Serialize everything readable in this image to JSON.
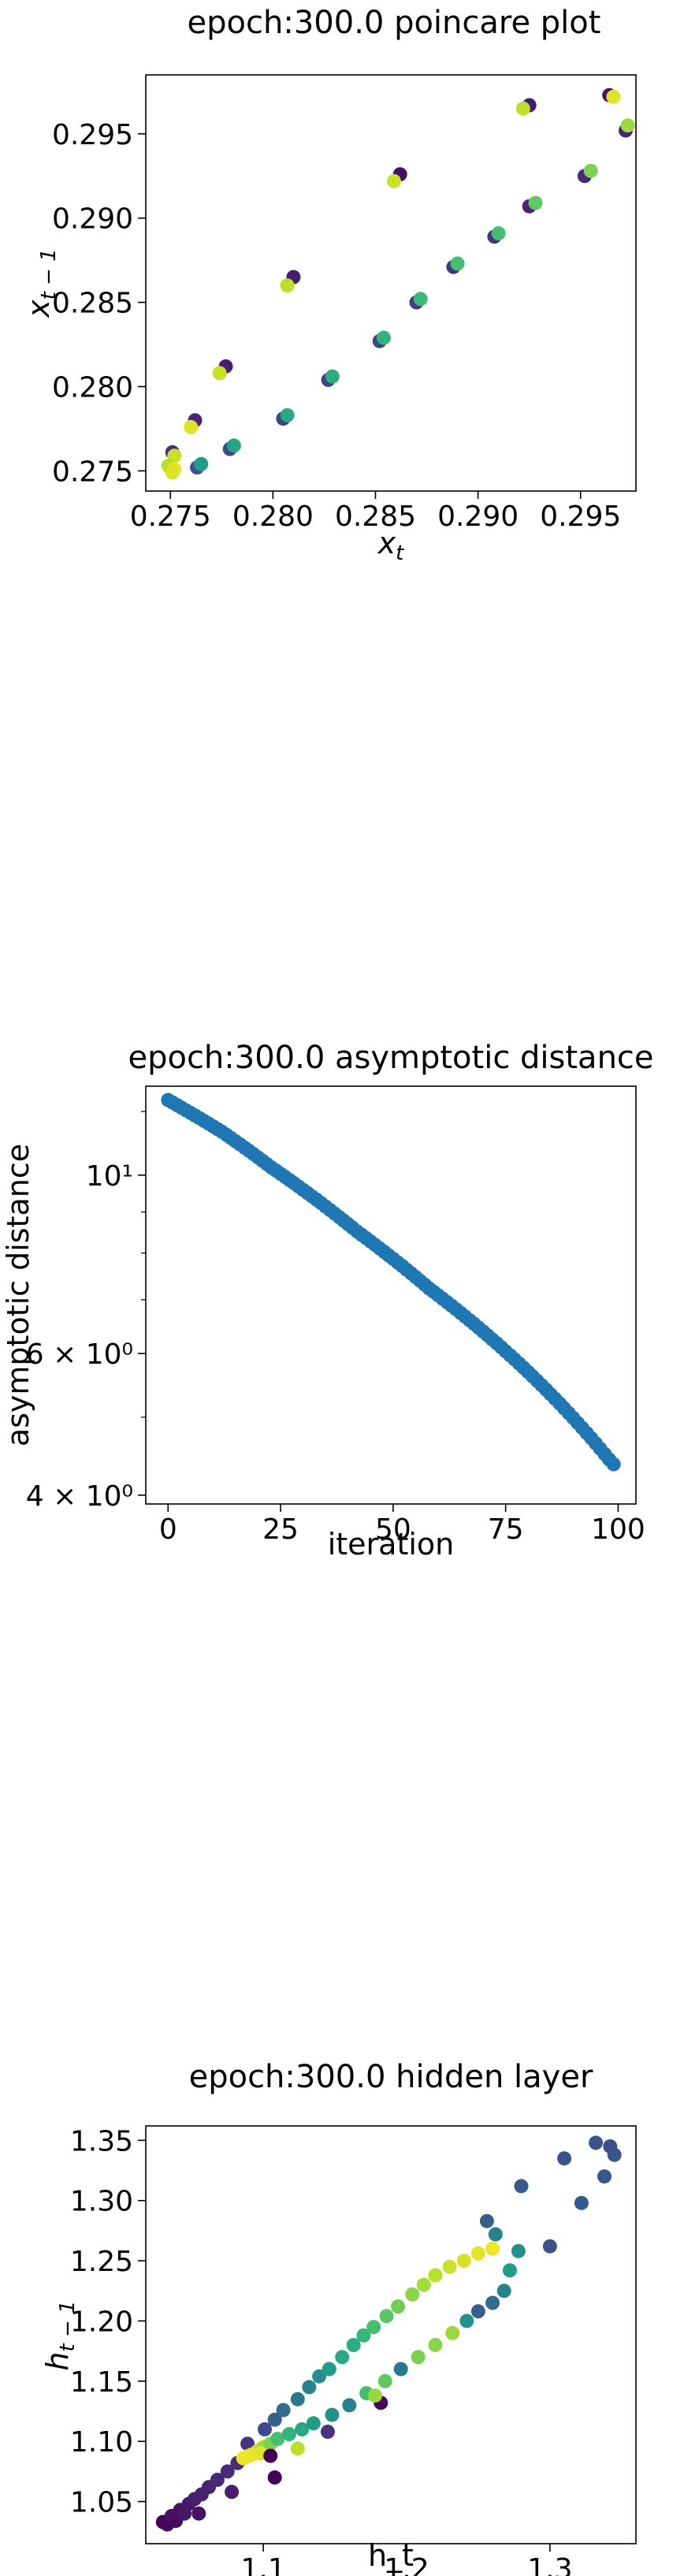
{
  "chart_data": [
    {
      "type": "scatter",
      "title": "epoch:300.0 poincare plot",
      "xlabel": "x_t",
      "ylabel": "x_{t-1}",
      "xlim": [
        0.2738,
        0.2977
      ],
      "ylim": [
        0.2738,
        0.2985
      ],
      "xticks": [
        0.275,
        0.28,
        0.285,
        0.29,
        0.295
      ],
      "xtick_labels": [
        "0.275",
        "0.280",
        "0.285",
        "0.290",
        "0.295"
      ],
      "yticks": [
        0.275,
        0.28,
        0.285,
        0.29,
        0.295
      ],
      "ytick_labels": [
        "0.275",
        "0.280",
        "0.285",
        "0.290",
        "0.295"
      ],
      "grid": false,
      "colormap": "viridis",
      "series": [
        {
          "points": [
            [
              0.2964,
              0.2973,
              0.05
            ],
            [
              0.2966,
              0.2972,
              0.95
            ],
            [
              0.2925,
              0.2967,
              0.08
            ],
            [
              0.2922,
              0.2965,
              0.9
            ],
            [
              0.2972,
              0.2952,
              0.1
            ],
            [
              0.2973,
              0.2955,
              0.85
            ],
            [
              0.2862,
              0.2926,
              0.05
            ],
            [
              0.2859,
              0.2922,
              0.92
            ],
            [
              0.2952,
              0.2925,
              0.12
            ],
            [
              0.2955,
              0.2928,
              0.8
            ],
            [
              0.2925,
              0.2907,
              0.1
            ],
            [
              0.2928,
              0.2909,
              0.75
            ],
            [
              0.2908,
              0.2889,
              0.15
            ],
            [
              0.291,
              0.2891,
              0.7
            ],
            [
              0.281,
              0.2865,
              0.08
            ],
            [
              0.2807,
              0.286,
              0.9
            ],
            [
              0.2888,
              0.2871,
              0.15
            ],
            [
              0.289,
              0.2873,
              0.7
            ],
            [
              0.287,
              0.285,
              0.18
            ],
            [
              0.2872,
              0.2852,
              0.68
            ],
            [
              0.2852,
              0.2827,
              0.2
            ],
            [
              0.2854,
              0.2829,
              0.65
            ],
            [
              0.2777,
              0.2812,
              0.08
            ],
            [
              0.2774,
              0.2808,
              0.92
            ],
            [
              0.2827,
              0.2804,
              0.2
            ],
            [
              0.2829,
              0.2806,
              0.62
            ],
            [
              0.2805,
              0.2781,
              0.2
            ],
            [
              0.2807,
              0.2783,
              0.6
            ],
            [
              0.2762,
              0.278,
              0.1
            ],
            [
              0.276,
              0.2776,
              0.95
            ],
            [
              0.2779,
              0.2763,
              0.22
            ],
            [
              0.2781,
              0.2765,
              0.58
            ],
            [
              0.2751,
              0.2761,
              0.12
            ],
            [
              0.2752,
              0.2759,
              0.92
            ],
            [
              0.2763,
              0.2752,
              0.25
            ],
            [
              0.2765,
              0.2754,
              0.55
            ],
            [
              0.2749,
              0.2753,
              0.9
            ],
            [
              0.2752,
              0.2751,
              0.97
            ],
            [
              0.2751,
              0.2749,
              0.95
            ]
          ]
        }
      ]
    },
    {
      "type": "scatter",
      "title": "epoch:300.0 asymptotic distance",
      "xlabel": "iteration",
      "ylabel": "asymptotic distance",
      "xlim": [
        -4.95,
        103.95
      ],
      "ylim": [
        3.9,
        12.9
      ],
      "yscale": "log",
      "xticks": [
        0,
        25,
        50,
        75,
        100
      ],
      "xtick_labels": [
        "0",
        "25",
        "50",
        "75",
        "100"
      ],
      "yticks": [
        4,
        6,
        10
      ],
      "ytick_labels": [
        "4 × 10⁰",
        "6 × 10⁰",
        "10¹"
      ],
      "grid": false,
      "color": "#1f77b4",
      "series": [
        {
          "x": [
            0,
            1,
            2,
            3,
            4,
            5,
            6,
            7,
            8,
            9,
            10,
            11,
            12,
            13,
            14,
            15,
            16,
            17,
            18,
            19,
            20,
            21,
            22,
            23,
            24,
            25,
            26,
            27,
            28,
            29,
            30,
            31,
            32,
            33,
            34,
            35,
            36,
            37,
            38,
            39,
            40,
            41,
            42,
            43,
            44,
            45,
            46,
            47,
            48,
            49,
            50,
            51,
            52,
            53,
            54,
            55,
            56,
            57,
            58,
            59,
            60,
            61,
            62,
            63,
            64,
            65,
            66,
            67,
            68,
            69,
            70,
            71,
            72,
            73,
            74,
            75,
            76,
            77,
            78,
            79,
            80,
            81,
            82,
            83,
            84,
            85,
            86,
            87,
            88,
            89,
            90,
            91,
            92,
            93,
            94,
            95,
            96,
            97,
            98,
            99
          ],
          "y": [
            12.4,
            12.31,
            12.22,
            12.13,
            12.04,
            11.95,
            11.86,
            11.77,
            11.68,
            11.59,
            11.5,
            11.41,
            11.32,
            11.22,
            11.12,
            11.02,
            10.92,
            10.82,
            10.72,
            10.62,
            10.52,
            10.42,
            10.32,
            10.22,
            10.13,
            10.04,
            9.95,
            9.86,
            9.77,
            9.68,
            9.59,
            9.5,
            9.41,
            9.32,
            9.23,
            9.14,
            9.05,
            8.96,
            8.87,
            8.78,
            8.69,
            8.6,
            8.51,
            8.43,
            8.35,
            8.27,
            8.19,
            8.11,
            8.03,
            7.95,
            7.87,
            7.79,
            7.71,
            7.63,
            7.55,
            7.47,
            7.39,
            7.31,
            7.23,
            7.16,
            7.09,
            7.02,
            6.95,
            6.88,
            6.81,
            6.74,
            6.67,
            6.6,
            6.53,
            6.46,
            6.39,
            6.32,
            6.25,
            6.18,
            6.11,
            6.04,
            5.97,
            5.9,
            5.83,
            5.76,
            5.69,
            5.62,
            5.55,
            5.48,
            5.41,
            5.34,
            5.27,
            5.2,
            5.13,
            5.06,
            4.99,
            4.92,
            4.85,
            4.78,
            4.71,
            4.64,
            4.57,
            4.5,
            4.43,
            4.37
          ]
        }
      ]
    },
    {
      "type": "scatter",
      "title": "epoch:300.0 hidden layer",
      "xlabel": "h_t",
      "ylabel": "h_{t-1}",
      "xlim": [
        1.018,
        1.36
      ],
      "ylim": [
        1.015,
        1.362
      ],
      "xticks": [
        1.1,
        1.2,
        1.3
      ],
      "xtick_labels": [
        "1.1",
        "1.2",
        "1.3"
      ],
      "yticks": [
        1.05,
        1.1,
        1.15,
        1.2,
        1.25,
        1.3,
        1.35
      ],
      "ytick_labels": [
        "1.05",
        "1.10",
        "1.15",
        "1.20",
        "1.25",
        "1.30",
        "1.35"
      ],
      "grid": false,
      "colormap": "viridis",
      "series": [
        {
          "points": [
            [
              1.03,
              1.033,
              0.0
            ],
            [
              1.033,
              1.031,
              0.02
            ],
            [
              1.036,
              1.038,
              0.04
            ],
            [
              1.039,
              1.034,
              0.03
            ],
            [
              1.042,
              1.043,
              0.05
            ],
            [
              1.045,
              1.04,
              0.06
            ],
            [
              1.048,
              1.048,
              0.07
            ],
            [
              1.052,
              1.052,
              0.08
            ],
            [
              1.057,
              1.056,
              0.09
            ],
            [
              1.062,
              1.062,
              0.1
            ],
            [
              1.068,
              1.068,
              0.11
            ],
            [
              1.075,
              1.075,
              0.12
            ],
            [
              1.082,
              1.082,
              0.13
            ],
            [
              1.055,
              1.04,
              0.05
            ],
            [
              1.078,
              1.058,
              0.08
            ],
            [
              1.089,
              1.098,
              0.15
            ],
            [
              1.101,
              1.11,
              0.22
            ],
            [
              1.108,
              1.118,
              0.3
            ],
            [
              1.114,
              1.126,
              0.35
            ],
            [
              1.124,
              1.135,
              0.4
            ],
            [
              1.132,
              1.145,
              0.45
            ],
            [
              1.139,
              1.154,
              0.5
            ],
            [
              1.146,
              1.16,
              0.55
            ],
            [
              1.155,
              1.17,
              0.6
            ],
            [
              1.163,
              1.18,
              0.62
            ],
            [
              1.17,
              1.188,
              0.66
            ],
            [
              1.177,
              1.195,
              0.7
            ],
            [
              1.186,
              1.204,
              0.74
            ],
            [
              1.194,
              1.212,
              0.78
            ],
            [
              1.204,
              1.222,
              0.82
            ],
            [
              1.212,
              1.23,
              0.86
            ],
            [
              1.22,
              1.238,
              0.9
            ],
            [
              1.23,
              1.245,
              0.92
            ],
            [
              1.24,
              1.25,
              0.94
            ],
            [
              1.25,
              1.256,
              0.96
            ],
            [
              1.26,
              1.26,
              0.98
            ],
            [
              1.09,
              1.088,
              0.95
            ],
            [
              1.096,
              1.092,
              0.9
            ],
            [
              1.1,
              1.095,
              0.85
            ],
            [
              1.105,
              1.098,
              0.8
            ],
            [
              1.11,
              1.102,
              0.7
            ],
            [
              1.118,
              1.106,
              0.65
            ],
            [
              1.127,
              1.11,
              0.6
            ],
            [
              1.135,
              1.115,
              0.55
            ],
            [
              1.148,
              1.122,
              0.5
            ],
            [
              1.16,
              1.13,
              0.45
            ],
            [
              1.172,
              1.14,
              0.7
            ],
            [
              1.185,
              1.15,
              0.75
            ],
            [
              1.196,
              1.16,
              0.4
            ],
            [
              1.208,
              1.17,
              0.8
            ],
            [
              1.22,
              1.18,
              0.82
            ],
            [
              1.232,
              1.19,
              0.85
            ],
            [
              1.242,
              1.2,
              0.5
            ],
            [
              1.25,
              1.208,
              0.3
            ],
            [
              1.26,
              1.215,
              0.35
            ],
            [
              1.268,
              1.225,
              0.45
            ],
            [
              1.272,
              1.242,
              0.55
            ],
            [
              1.278,
              1.258,
              0.5
            ],
            [
              1.262,
              1.272,
              0.45
            ],
            [
              1.256,
              1.283,
              0.3
            ],
            [
              1.28,
              1.312,
              0.28
            ],
            [
              1.3,
              1.262,
              0.26
            ],
            [
              1.31,
              1.335,
              0.25
            ],
            [
              1.322,
              1.298,
              0.28
            ],
            [
              1.332,
              1.348,
              0.25
            ],
            [
              1.338,
              1.32,
              0.27
            ],
            [
              1.342,
              1.345,
              0.24
            ],
            [
              1.345,
              1.338,
              0.26
            ],
            [
              1.086,
              1.086,
              0.98
            ],
            [
              1.092,
              1.089,
              0.97
            ],
            [
              1.098,
              1.09,
              0.96
            ],
            [
              1.105,
              1.088,
              0.0
            ],
            [
              1.182,
              1.132,
              0.02
            ],
            [
              1.108,
              1.07,
              0.01
            ],
            [
              1.124,
              1.094,
              0.9
            ],
            [
              1.145,
              1.108,
              0.15
            ],
            [
              1.178,
              1.138,
              0.85
            ]
          ]
        }
      ]
    }
  ]
}
